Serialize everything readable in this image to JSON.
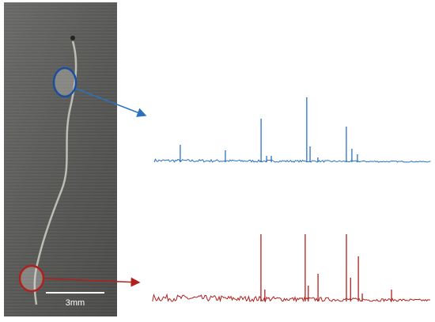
{
  "scale_bar": {
    "label": "3mm"
  },
  "spectra": [
    {
      "color": "#2a72c0",
      "x": [
        9.4,
        25.7,
        38.6,
        40.6,
        42.3,
        55.1,
        56.3,
        59.1,
        69.4,
        71.4,
        73.4
      ],
      "values": [
        22,
        15,
        55,
        8,
        8,
        82,
        20,
        6,
        45,
        17,
        10
      ]
    },
    {
      "color": "#b0201e",
      "x": [
        38.9,
        40.3,
        54.8,
        55.9,
        59.4,
        69.6,
        71.1,
        73.9,
        75.3,
        85.8
      ],
      "values": [
        85,
        15,
        85,
        20,
        35,
        85,
        30,
        57,
        10,
        15
      ]
    }
  ]
}
